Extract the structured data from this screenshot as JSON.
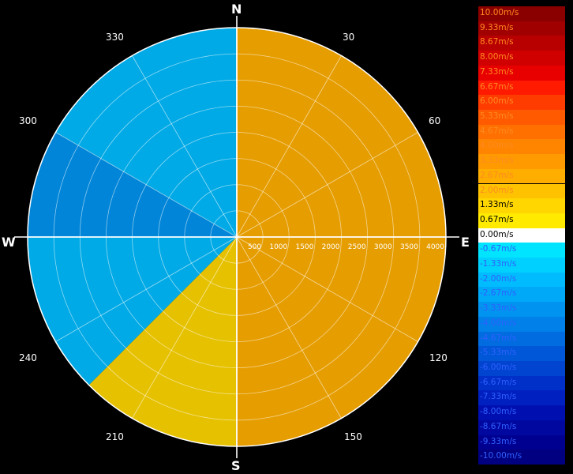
{
  "compass": {
    "n": "N",
    "e": "E",
    "s": "S",
    "w": "W"
  },
  "azimuth_labels": [
    "30",
    "60",
    "120",
    "150",
    "210",
    "240",
    "300",
    "330"
  ],
  "range_labels": [
    "500",
    "1000",
    "1500",
    "2000",
    "2500",
    "3000",
    "3500",
    "4000"
  ],
  "legend": [
    {
      "label": "10.00m/s",
      "color": "#8a0000"
    },
    {
      "label": "9.33m/s",
      "color": "#a00000"
    },
    {
      "label": "8.67m/s",
      "color": "#b80000"
    },
    {
      "label": "8.00m/s",
      "color": "#d00000"
    },
    {
      "label": "7.33m/s",
      "color": "#e80000"
    },
    {
      "label": "6.67m/s",
      "color": "#ff1a00"
    },
    {
      "label": "6.00m/s",
      "color": "#ff3c00"
    },
    {
      "label": "5.33m/s",
      "color": "#ff5a00"
    },
    {
      "label": "4.67m/s",
      "color": "#ff7000"
    },
    {
      "label": "4.00m/s",
      "color": "#ff8400"
    },
    {
      "label": "3.33m/s",
      "color": "#ff9a00"
    },
    {
      "label": "2.67m/s",
      "color": "#ffae00"
    },
    {
      "label": "2.00m/s",
      "color": "#ffc200"
    },
    {
      "label": "1.33m/s",
      "color": "#ffd600"
    },
    {
      "label": "0.67m/s",
      "color": "#ffea00"
    },
    {
      "label": "0.00m/s",
      "color": "#ffffff"
    },
    {
      "label": "-0.67m/s",
      "color": "#00e4ff"
    },
    {
      "label": "-1.33m/s",
      "color": "#00d0ff"
    },
    {
      "label": "-2.00m/s",
      "color": "#00bcff"
    },
    {
      "label": "-2.67m/s",
      "color": "#00a8f8"
    },
    {
      "label": "-3.33m/s",
      "color": "#0094f0"
    },
    {
      "label": "-4.00m/s",
      "color": "#0080e8"
    },
    {
      "label": "-4.67m/s",
      "color": "#006ce0"
    },
    {
      "label": "-5.33m/s",
      "color": "#0058d8"
    },
    {
      "label": "-6.00m/s",
      "color": "#0044d0"
    },
    {
      "label": "-6.67m/s",
      "color": "#0030c8"
    },
    {
      "label": "-7.33m/s",
      "color": "#0020c0"
    },
    {
      "label": "-8.00m/s",
      "color": "#0010b0"
    },
    {
      "label": "-8.67m/s",
      "color": "#0008a0"
    },
    {
      "label": "-9.33m/s",
      "color": "#000090"
    },
    {
      "label": "-10.00m/s",
      "color": "#000080"
    }
  ],
  "chart_data": {
    "type": "heatmap",
    "projection": "polar (PPI)",
    "value_unit": "m/s",
    "value_range": [
      -10,
      10
    ],
    "range_max": 4000,
    "range_rings": [
      500,
      1000,
      1500,
      2000,
      2500,
      3000,
      3500,
      4000
    ],
    "azimuth_spokes": [
      0,
      30,
      60,
      90,
      120,
      150,
      180,
      210,
      240,
      270,
      300,
      330
    ],
    "sectors": [
      {
        "az_start": 0,
        "az_end": 90,
        "value": 2.8
      },
      {
        "az_start": 90,
        "az_end": 180,
        "value": 2.4
      },
      {
        "az_start": 180,
        "az_end": 225,
        "value": 1.2
      },
      {
        "az_start": 225,
        "az_end": 270,
        "value": -2.0
      },
      {
        "az_start": 270,
        "az_end": 300,
        "value": -3.0
      },
      {
        "az_start": 300,
        "az_end": 360,
        "value": -2.3
      }
    ]
  }
}
